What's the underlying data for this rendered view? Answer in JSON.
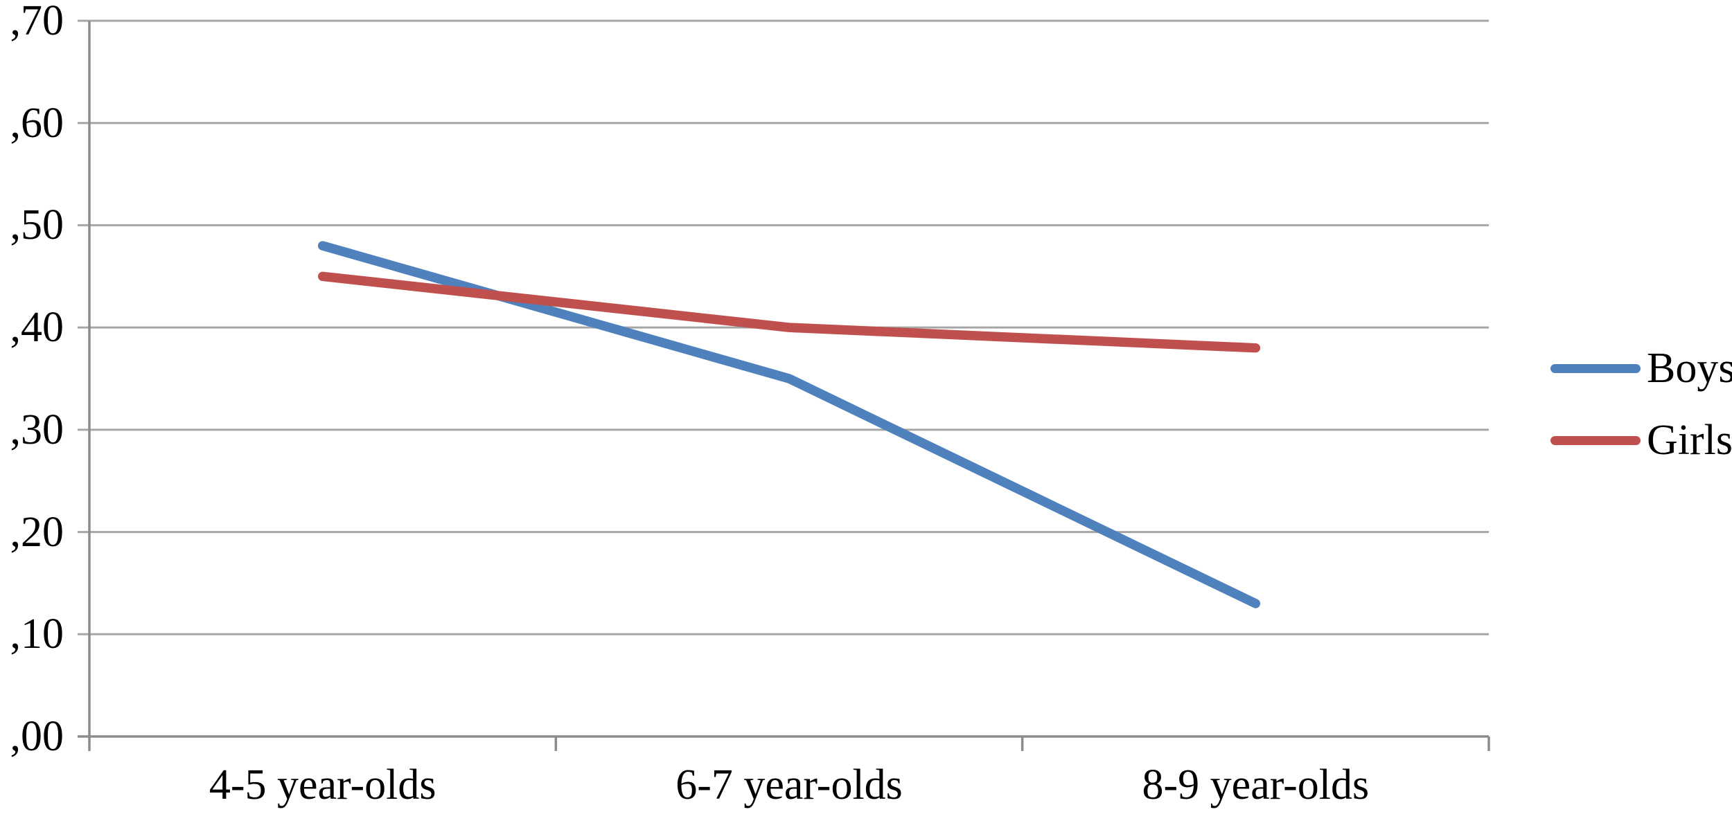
{
  "chart_data": {
    "type": "line",
    "categories": [
      "4-5 year-olds",
      "6-7 year-olds",
      "8-9 year-olds"
    ],
    "series": [
      {
        "name": "Boys",
        "color": "#4F81BD",
        "values": [
          0.48,
          0.35,
          0.13
        ]
      },
      {
        "name": "Girls",
        "color": "#C0504D",
        "values": [
          0.45,
          0.4,
          0.38
        ]
      }
    ],
    "title": "",
    "xlabel": "",
    "ylabel": "",
    "y_axis": {
      "min": 0.0,
      "max": 0.7,
      "step": 0.1,
      "tick_labels": [
        ",00",
        ",10",
        ",20",
        ",30",
        ",40",
        ",50",
        ",60",
        ",70"
      ],
      "decimal_format": "comma"
    },
    "grid": true,
    "legend_position": "right-middle"
  },
  "legend": {
    "items": [
      {
        "label": "Boys"
      },
      {
        "label": "Girls"
      }
    ]
  },
  "colors": {
    "gridline": "#A6A6A6",
    "axis": "#8C8C8C",
    "text": "#000000",
    "background": "#FFFFFF"
  }
}
